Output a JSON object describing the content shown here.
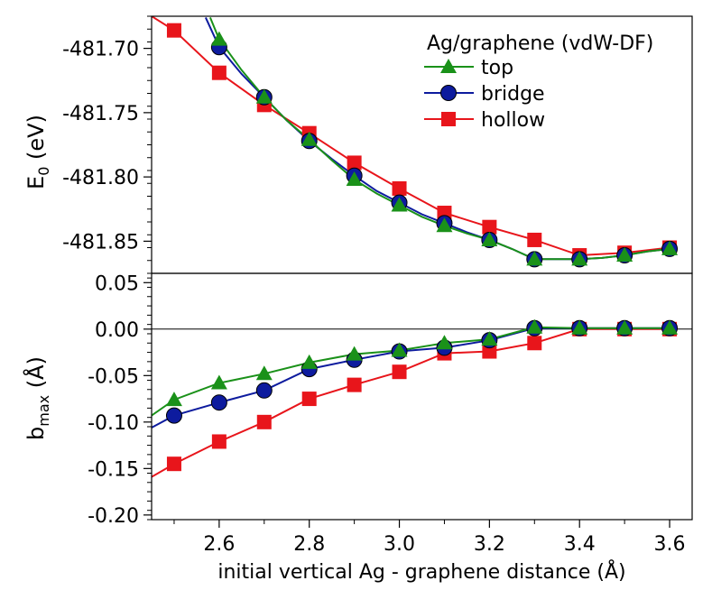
{
  "chart_data": [
    {
      "type": "line",
      "ylabel_main": "E",
      "ylabel_sub": "0",
      "ylabel_unit": " (eV)",
      "ylim": [
        -481.875,
        -481.675
      ],
      "yticks": [
        -481.85,
        -481.8,
        -481.75,
        -481.7
      ],
      "ytick_labels": [
        "-481.85",
        "-481.80",
        "-481.75",
        "-481.70"
      ],
      "legend": {
        "title": "Ag/graphene (vdW-DF)",
        "placement": "top-right",
        "entries": [
          "top",
          "bridge",
          "hollow"
        ]
      },
      "series": [
        {
          "name": "top",
          "color": "#1a9119",
          "marker": "triangle",
          "x": [
            2.6,
            2.7,
            2.8,
            2.9,
            3.0,
            3.1,
            3.2,
            3.3,
            3.4,
            3.5,
            3.6
          ],
          "y": [
            -481.693,
            -481.738,
            -481.771,
            -481.802,
            -481.822,
            -481.838,
            -481.849,
            -481.864,
            -481.864,
            -481.861,
            -481.856
          ],
          "line_x": [
            2.58,
            2.6,
            2.65,
            2.7,
            2.75,
            2.8,
            2.85,
            2.9,
            2.95,
            3.0,
            3.05,
            3.1,
            3.15,
            3.2,
            3.25,
            3.3,
            3.35,
            3.4,
            3.45,
            3.5,
            3.55,
            3.6
          ],
          "line_y": [
            -481.676,
            -481.693,
            -481.717,
            -481.738,
            -481.756,
            -481.771,
            -481.787,
            -481.802,
            -481.813,
            -481.822,
            -481.831,
            -481.838,
            -481.844,
            -481.849,
            -481.856,
            -481.864,
            -481.864,
            -481.864,
            -481.863,
            -481.861,
            -481.858,
            -481.856
          ]
        },
        {
          "name": "bridge",
          "color": "#0d1b9e",
          "marker": "circle",
          "x": [
            2.6,
            2.7,
            2.8,
            2.9,
            3.0,
            3.1,
            3.2,
            3.3,
            3.4,
            3.5,
            3.6
          ],
          "y": [
            -481.699,
            -481.738,
            -481.772,
            -481.799,
            -481.82,
            -481.836,
            -481.849,
            -481.864,
            -481.864,
            -481.861,
            -481.856
          ],
          "line_x": [
            2.57,
            2.6,
            2.65,
            2.7,
            2.75,
            2.8,
            2.85,
            2.9,
            2.95,
            3.0,
            3.05,
            3.1,
            3.15,
            3.2,
            3.25,
            3.3,
            3.35,
            3.4,
            3.45,
            3.5,
            3.55,
            3.6
          ],
          "line_y": [
            -481.676,
            -481.699,
            -481.72,
            -481.738,
            -481.756,
            -481.772,
            -481.786,
            -481.799,
            -481.811,
            -481.82,
            -481.829,
            -481.836,
            -481.843,
            -481.849,
            -481.856,
            -481.864,
            -481.864,
            -481.864,
            -481.863,
            -481.861,
            -481.858,
            -481.856
          ]
        },
        {
          "name": "hollow",
          "color": "#e8151b",
          "marker": "square",
          "x": [
            2.5,
            2.6,
            2.7,
            2.8,
            2.9,
            3.0,
            3.1,
            3.2,
            3.3,
            3.4,
            3.5,
            3.6
          ],
          "y": [
            -481.686,
            -481.719,
            -481.744,
            -481.766,
            -481.789,
            -481.809,
            -481.828,
            -481.839,
            -481.849,
            -481.861,
            -481.859,
            -481.855
          ],
          "line_x": [
            2.45,
            2.5,
            2.6,
            2.7,
            2.8,
            2.9,
            3.0,
            3.1,
            3.2,
            3.3,
            3.4,
            3.5,
            3.6
          ],
          "line_y": [
            -481.675,
            -481.686,
            -481.719,
            -481.744,
            -481.766,
            -481.789,
            -481.809,
            -481.828,
            -481.839,
            -481.849,
            -481.861,
            -481.859,
            -481.855
          ]
        }
      ]
    },
    {
      "type": "line",
      "ylabel_main": "b",
      "ylabel_sub": "max",
      "ylabel_unit": " (Å)",
      "xlabel": "initial vertical Ag - graphene distance (Å)",
      "xlim": [
        2.45,
        3.65
      ],
      "xticks": [
        2.6,
        2.8,
        3.0,
        3.2,
        3.4,
        3.6
      ],
      "xtick_labels": [
        "2.6",
        "2.8",
        "3.0",
        "3.2",
        "3.4",
        "3.6"
      ],
      "ylim": [
        -0.205,
        0.06
      ],
      "yticks": [
        -0.2,
        -0.15,
        -0.1,
        -0.05,
        0.0,
        0.05
      ],
      "ytick_labels": [
        "-0.20",
        "-0.15",
        "-0.10",
        "-0.05",
        "0.00",
        "0.05"
      ],
      "zero_line": true,
      "series": [
        {
          "name": "top",
          "color": "#1a9119",
          "marker": "triangle",
          "x": [
            2.5,
            2.6,
            2.7,
            2.8,
            2.9,
            3.0,
            3.1,
            3.2,
            3.3,
            3.4,
            3.5,
            3.6
          ],
          "y": [
            -0.076,
            -0.058,
            -0.048,
            -0.036,
            -0.027,
            -0.023,
            -0.015,
            -0.011,
            0.002,
            0.001,
            0.001,
            0.001
          ],
          "line_x": [
            2.45,
            2.5,
            2.6,
            2.7,
            2.8,
            2.9,
            3.0,
            3.1,
            3.2,
            3.3,
            3.4,
            3.5,
            3.6
          ],
          "line_y": [
            -0.093,
            -0.076,
            -0.058,
            -0.048,
            -0.036,
            -0.027,
            -0.023,
            -0.015,
            -0.011,
            0.002,
            0.001,
            0.001,
            0.001
          ]
        },
        {
          "name": "bridge",
          "color": "#0d1b9e",
          "marker": "circle",
          "x": [
            2.5,
            2.6,
            2.7,
            2.8,
            2.9,
            3.0,
            3.1,
            3.2,
            3.3,
            3.4,
            3.5,
            3.6
          ],
          "y": [
            -0.093,
            -0.079,
            -0.066,
            -0.043,
            -0.033,
            -0.024,
            -0.02,
            -0.012,
            0.001,
            0.001,
            0.001,
            0.001
          ],
          "line_x": [
            2.45,
            2.5,
            2.6,
            2.7,
            2.8,
            2.9,
            3.0,
            3.1,
            3.2,
            3.3,
            3.4,
            3.5,
            3.6
          ],
          "line_y": [
            -0.106,
            -0.093,
            -0.079,
            -0.066,
            -0.043,
            -0.033,
            -0.024,
            -0.02,
            -0.012,
            0.001,
            0.001,
            0.001,
            0.001
          ]
        },
        {
          "name": "hollow",
          "color": "#e8151b",
          "marker": "square",
          "x": [
            2.5,
            2.6,
            2.7,
            2.8,
            2.9,
            3.0,
            3.1,
            3.2,
            3.3,
            3.4,
            3.5,
            3.6
          ],
          "y": [
            -0.145,
            -0.121,
            -0.1,
            -0.075,
            -0.06,
            -0.046,
            -0.026,
            -0.024,
            -0.015,
            0.0,
            0.0,
            0.0
          ],
          "line_x": [
            2.45,
            2.5,
            2.6,
            2.7,
            2.8,
            2.9,
            3.0,
            3.1,
            3.2,
            3.3,
            3.4,
            3.5,
            3.6
          ],
          "line_y": [
            -0.159,
            -0.145,
            -0.121,
            -0.1,
            -0.075,
            -0.06,
            -0.046,
            -0.026,
            -0.024,
            -0.015,
            0.0,
            0.0,
            0.0
          ]
        }
      ]
    }
  ]
}
